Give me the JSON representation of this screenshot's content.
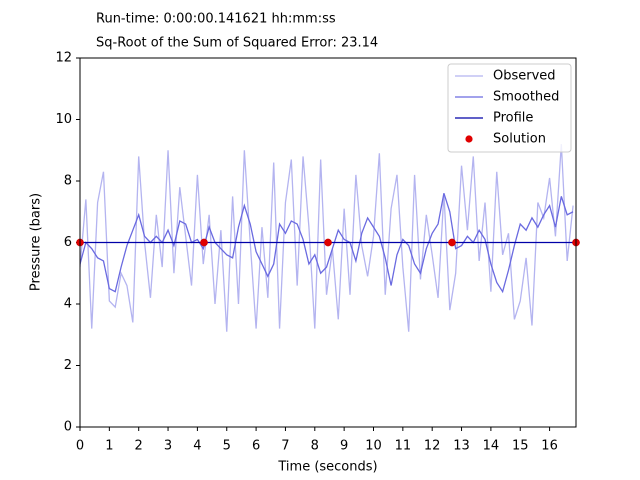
{
  "chart_data": {
    "type": "line",
    "annotations": [
      "Run-time: 0:00:00.141621 hh:mm:ss",
      "Sq-Root of the Sum of Squared Error: 23.14"
    ],
    "xlabel": "Time (seconds)",
    "ylabel": "Pressure (bars)",
    "xlim": [
      0,
      16.9
    ],
    "ylim": [
      0,
      12
    ],
    "xticks": [
      0,
      1,
      2,
      3,
      4,
      5,
      6,
      7,
      8,
      9,
      10,
      11,
      12,
      13,
      14,
      15,
      16
    ],
    "yticks": [
      0,
      2,
      4,
      6,
      8,
      10,
      12
    ],
    "legend": "upper right",
    "series": [
      {
        "name": "Observed",
        "type": "line",
        "color": "#b4b4f0",
        "x": [
          0,
          0.2,
          0.4,
          0.6,
          0.8,
          1,
          1.2,
          1.4,
          1.6,
          1.8,
          2,
          2.2,
          2.4,
          2.6,
          2.8,
          3,
          3.2,
          3.4,
          3.6,
          3.8,
          4,
          4.2,
          4.4,
          4.6,
          4.8,
          5,
          5.2,
          5.4,
          5.6,
          5.8,
          6,
          6.2,
          6.4,
          6.6,
          6.8,
          7,
          7.2,
          7.4,
          7.6,
          7.8,
          8,
          8.2,
          8.4,
          8.6,
          8.8,
          9,
          9.2,
          9.4,
          9.6,
          9.8,
          10,
          10.2,
          10.4,
          10.6,
          10.8,
          11,
          11.2,
          11.4,
          11.6,
          11.8,
          12,
          12.2,
          12.4,
          12.6,
          12.8,
          13,
          13.2,
          13.4,
          13.6,
          13.8,
          14,
          14.2,
          14.4,
          14.6,
          14.8,
          15,
          15.2,
          15.4,
          15.6,
          15.8,
          16,
          16.2,
          16.4,
          16.6,
          16.8
        ],
        "values": [
          5.2,
          7.4,
          3.2,
          7.3,
          8.3,
          4.1,
          3.9,
          5.0,
          4.6,
          3.4,
          8.8,
          6.0,
          4.2,
          6.9,
          5.2,
          9.0,
          5.0,
          7.8,
          6.2,
          4.6,
          8.2,
          5.3,
          6.9,
          4.0,
          6.4,
          3.1,
          7.5,
          4.0,
          9.0,
          6.0,
          3.2,
          6.5,
          4.2,
          8.6,
          3.2,
          7.3,
          8.7,
          4.6,
          8.8,
          6.5,
          3.2,
          8.7,
          4.3,
          5.8,
          3.5,
          7.1,
          4.3,
          8.2,
          5.9,
          4.9,
          6.2,
          8.9,
          4.3,
          7.1,
          8.2,
          5.2,
          3.1,
          8.2,
          4.8,
          6.9,
          5.6,
          4.2,
          7.6,
          3.8,
          5.0,
          8.5,
          6.4,
          8.8,
          5.4,
          7.3,
          4.4,
          8.3,
          5.6,
          6.3,
          3.5,
          4.1,
          5.5,
          3.3,
          7.3,
          6.8,
          8.1,
          6.2,
          9.2,
          5.4,
          7.2
        ]
      },
      {
        "name": "Smoothed",
        "type": "line",
        "color": "#6a6ae0",
        "x": [
          0,
          0.2,
          0.4,
          0.6,
          0.8,
          1,
          1.2,
          1.4,
          1.6,
          1.8,
          2,
          2.2,
          2.4,
          2.6,
          2.8,
          3,
          3.2,
          3.4,
          3.6,
          3.8,
          4,
          4.2,
          4.4,
          4.6,
          4.8,
          5,
          5.2,
          5.4,
          5.6,
          5.8,
          6,
          6.2,
          6.4,
          6.6,
          6.8,
          7,
          7.2,
          7.4,
          7.6,
          7.8,
          8,
          8.2,
          8.4,
          8.6,
          8.8,
          9,
          9.2,
          9.4,
          9.6,
          9.8,
          10,
          10.2,
          10.4,
          10.6,
          10.8,
          11,
          11.2,
          11.4,
          11.6,
          11.8,
          12,
          12.2,
          12.4,
          12.6,
          12.8,
          13,
          13.2,
          13.4,
          13.6,
          13.8,
          14,
          14.2,
          14.4,
          14.6,
          14.8,
          15,
          15.2,
          15.4,
          15.6,
          15.8,
          16,
          16.2,
          16.4,
          16.6,
          16.8
        ],
        "values": [
          5.3,
          6.0,
          5.8,
          5.5,
          5.4,
          4.5,
          4.4,
          5.2,
          5.9,
          6.4,
          6.9,
          6.2,
          6.0,
          6.2,
          6.0,
          6.4,
          5.9,
          6.7,
          6.6,
          6.0,
          6.1,
          5.8,
          6.5,
          6.0,
          5.8,
          5.6,
          5.5,
          6.5,
          7.2,
          6.6,
          5.7,
          5.3,
          4.9,
          5.3,
          6.6,
          6.3,
          6.7,
          6.6,
          6.1,
          5.3,
          5.6,
          5.0,
          5.2,
          5.8,
          6.4,
          6.1,
          6.0,
          5.4,
          6.3,
          6.8,
          6.5,
          6.2,
          5.5,
          4.6,
          5.6,
          6.1,
          5.9,
          5.3,
          5.0,
          5.8,
          6.3,
          6.6,
          7.6,
          7.0,
          5.8,
          5.9,
          6.2,
          6.0,
          6.4,
          6.1,
          5.3,
          4.7,
          4.4,
          5.1,
          5.9,
          6.6,
          6.4,
          6.8,
          6.5,
          6.9,
          7.2,
          6.5,
          7.5,
          6.9,
          7.0
        ]
      },
      {
        "name": "Profile",
        "type": "line",
        "color": "#0000a8",
        "x": [
          0,
          16.9
        ],
        "values": [
          6,
          6
        ]
      },
      {
        "name": "Solution",
        "type": "scatter",
        "color": "#e00000",
        "x": [
          0,
          4.225,
          8.45,
          12.675,
          16.9
        ],
        "values": [
          6,
          6,
          6,
          6,
          6
        ]
      }
    ]
  }
}
